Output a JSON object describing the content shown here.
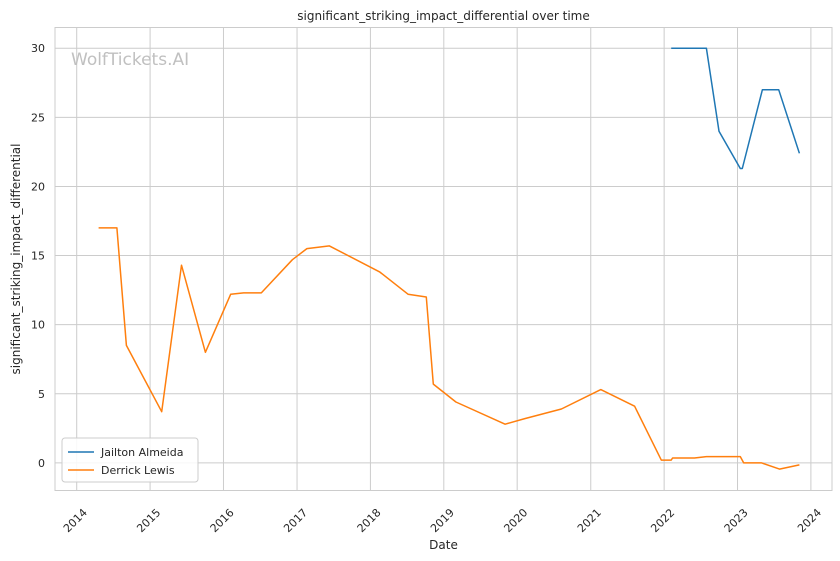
{
  "chart_data": {
    "type": "line",
    "title": "significant_striking_impact_differential over time",
    "xlabel": "Date",
    "ylabel": "significant_striking_impact_differential",
    "watermark": "WolfTickets.AI",
    "x_ticks": [
      "2014",
      "2015",
      "2016",
      "2017",
      "2018",
      "2019",
      "2020",
      "2021",
      "2022",
      "2023",
      "2024"
    ],
    "y_ticks": [
      0,
      5,
      10,
      15,
      20,
      25,
      30
    ],
    "xlim": [
      "2013-09-15",
      "2024-04-15"
    ],
    "ylim": [
      -2,
      31.5
    ],
    "grid": true,
    "legend_position": "lower-left",
    "series": [
      {
        "name": "Jailton Almeida",
        "color": "#1f77b4",
        "points": [
          [
            "2022-02-05",
            30.0
          ],
          [
            "2022-07-30",
            30.0
          ],
          [
            "2022-10-01",
            24.0
          ],
          [
            "2023-01-15",
            21.3
          ],
          [
            "2023-01-25",
            21.3
          ],
          [
            "2023-05-05",
            27.0
          ],
          [
            "2023-07-25",
            27.0
          ],
          [
            "2023-11-05",
            22.4
          ]
        ]
      },
      {
        "name": "Derrick Lewis",
        "color": "#ff7f0e",
        "points": [
          [
            "2014-04-20",
            17.0
          ],
          [
            "2014-07-20",
            17.0
          ],
          [
            "2014-09-05",
            8.5
          ],
          [
            "2015-02-28",
            3.7
          ],
          [
            "2015-06-06",
            14.3
          ],
          [
            "2015-10-03",
            8.0
          ],
          [
            "2016-02-06",
            12.2
          ],
          [
            "2016-04-10",
            12.3
          ],
          [
            "2016-07-07",
            12.3
          ],
          [
            "2016-12-09",
            14.7
          ],
          [
            "2017-02-19",
            15.5
          ],
          [
            "2017-06-11",
            15.7
          ],
          [
            "2018-02-17",
            13.8
          ],
          [
            "2018-07-07",
            12.2
          ],
          [
            "2018-10-06",
            12.0
          ],
          [
            "2018-11-10",
            5.7
          ],
          [
            "2019-03-02",
            4.4
          ],
          [
            "2019-11-02",
            2.8
          ],
          [
            "2020-02-08",
            3.2
          ],
          [
            "2020-08-08",
            3.9
          ],
          [
            "2021-02-20",
            5.3
          ],
          [
            "2021-08-07",
            4.1
          ],
          [
            "2021-12-18",
            0.2
          ],
          [
            "2022-02-05",
            0.2
          ],
          [
            "2022-02-12",
            0.35
          ],
          [
            "2022-06-01",
            0.35
          ],
          [
            "2022-07-30",
            0.45
          ],
          [
            "2023-01-15",
            0.45
          ],
          [
            "2023-02-01",
            0.0
          ],
          [
            "2023-05-01",
            0.0
          ],
          [
            "2023-07-29",
            -0.45
          ],
          [
            "2023-11-05",
            -0.15
          ]
        ]
      }
    ]
  }
}
